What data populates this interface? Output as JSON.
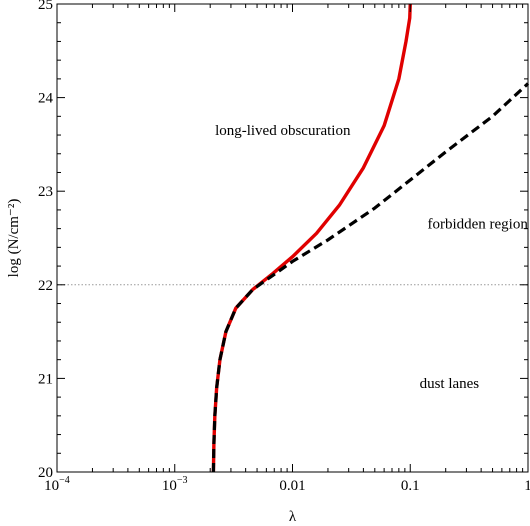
{
  "chart_data": {
    "type": "line",
    "title": "",
    "xlabel": "λ",
    "ylabel": "log (N/cm⁻²)",
    "x_scale": "log",
    "xlim": [
      0.0001,
      1
    ],
    "ylim": [
      20,
      25
    ],
    "x_ticks": [
      {
        "value": 0.0001,
        "base": "10",
        "exp": "−4"
      },
      {
        "value": 0.001,
        "base": "10",
        "exp": "−3"
      },
      {
        "value": 0.01,
        "text": "0.01"
      },
      {
        "value": 0.1,
        "text": "0.1"
      },
      {
        "value": 1,
        "text": "1"
      }
    ],
    "y_ticks": [
      {
        "value": 20,
        "text": "20"
      },
      {
        "value": 21,
        "text": "21"
      },
      {
        "value": 22,
        "text": "22"
      },
      {
        "value": 23,
        "text": "23"
      },
      {
        "value": 24,
        "text": "24"
      },
      {
        "value": 25,
        "text": "25"
      }
    ],
    "grid": false,
    "reference_lines": [
      {
        "orientation": "horizontal",
        "y": 22,
        "style": "dotted",
        "color": "#999999"
      }
    ],
    "series": [
      {
        "style": "solid",
        "color": "#e00000",
        "points": [
          [
            0.00213,
            20.0
          ],
          [
            0.00215,
            20.3
          ],
          [
            0.00219,
            20.6
          ],
          [
            0.00227,
            20.9
          ],
          [
            0.00242,
            21.2
          ],
          [
            0.00272,
            21.5
          ],
          [
            0.0033,
            21.75
          ],
          [
            0.0046,
            21.95
          ],
          [
            0.0068,
            22.12
          ],
          [
            0.01,
            22.3
          ],
          [
            0.016,
            22.55
          ],
          [
            0.025,
            22.85
          ],
          [
            0.04,
            23.25
          ],
          [
            0.06,
            23.7
          ],
          [
            0.08,
            24.2
          ],
          [
            0.092,
            24.6
          ],
          [
            0.099,
            24.85
          ],
          [
            0.1,
            25.0
          ]
        ]
      },
      {
        "style": "dashed",
        "color": "#000000",
        "points": [
          [
            0.00213,
            20.0
          ],
          [
            0.00215,
            20.3
          ],
          [
            0.00219,
            20.6
          ],
          [
            0.00227,
            20.9
          ],
          [
            0.00242,
            21.2
          ],
          [
            0.00272,
            21.5
          ],
          [
            0.0033,
            21.75
          ],
          [
            0.0046,
            21.95
          ],
          [
            0.0068,
            22.1
          ],
          [
            0.01,
            22.25
          ],
          [
            0.02,
            22.48
          ],
          [
            0.05,
            22.82
          ],
          [
            0.1,
            23.12
          ],
          [
            0.2,
            23.42
          ],
          [
            0.5,
            23.8
          ],
          [
            1.0,
            24.15
          ]
        ]
      }
    ],
    "annotations": [
      {
        "text": "long-lived obscuration",
        "x": 0.0022,
        "y": 23.6
      },
      {
        "text": "forbidden region",
        "x": 0.14,
        "y": 22.6
      },
      {
        "text": "dust lanes",
        "x": 0.12,
        "y": 20.9
      }
    ]
  }
}
